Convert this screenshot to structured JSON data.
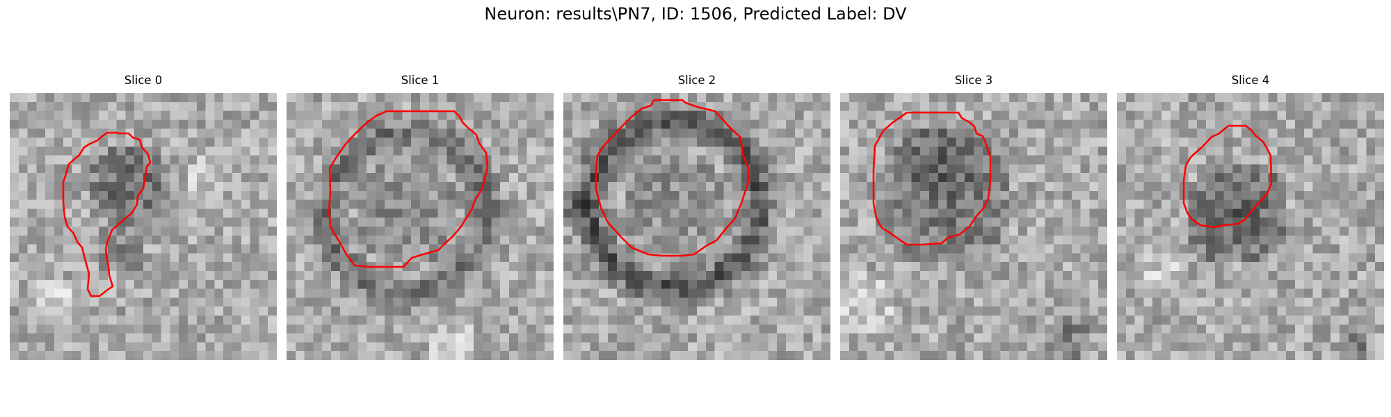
{
  "figure": {
    "title": "Neuron: results\\PN7, ID: 1506, Predicted Label: DV"
  },
  "contour_color": "#ff0000",
  "panels": [
    {
      "title": "Slice 0"
    },
    {
      "title": "Slice 1"
    },
    {
      "title": "Slice 2"
    },
    {
      "title": "Slice 3"
    },
    {
      "title": "Slice 4"
    }
  ]
}
